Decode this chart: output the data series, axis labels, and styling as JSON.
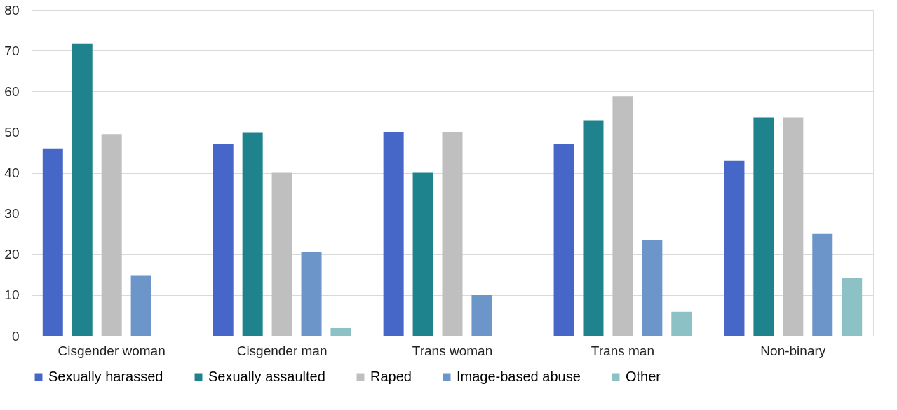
{
  "chart_data": {
    "type": "bar",
    "categories": [
      "Cisgender woman",
      "Cisgender man",
      "Trans woman",
      "Trans man",
      "Non-binary"
    ],
    "series": [
      {
        "name": "Sexually harassed",
        "color": "#4767c8",
        "values": [
          46,
          47.1,
          50,
          47,
          42.9
        ]
      },
      {
        "name": "Sexually assaulted",
        "color": "#1e838d",
        "values": [
          71.6,
          49.8,
          40,
          52.9,
          53.6
        ]
      },
      {
        "name": "Raped",
        "color": "#bfbfbf",
        "values": [
          49.5,
          40,
          50,
          58.8,
          53.6
        ]
      },
      {
        "name": "Image-based abuse",
        "color": "#6c95c9",
        "values": [
          14.7,
          20.5,
          10,
          23.4,
          25
        ]
      },
      {
        "name": "Other",
        "color": "#8cc2c5",
        "values": [
          null,
          1.9,
          null,
          5.9,
          14.3
        ]
      }
    ],
    "ylim": [
      0,
      80
    ],
    "yticks": [
      0,
      10,
      20,
      30,
      40,
      50,
      60,
      70,
      80
    ],
    "grid": "y",
    "legend": "bottom"
  }
}
